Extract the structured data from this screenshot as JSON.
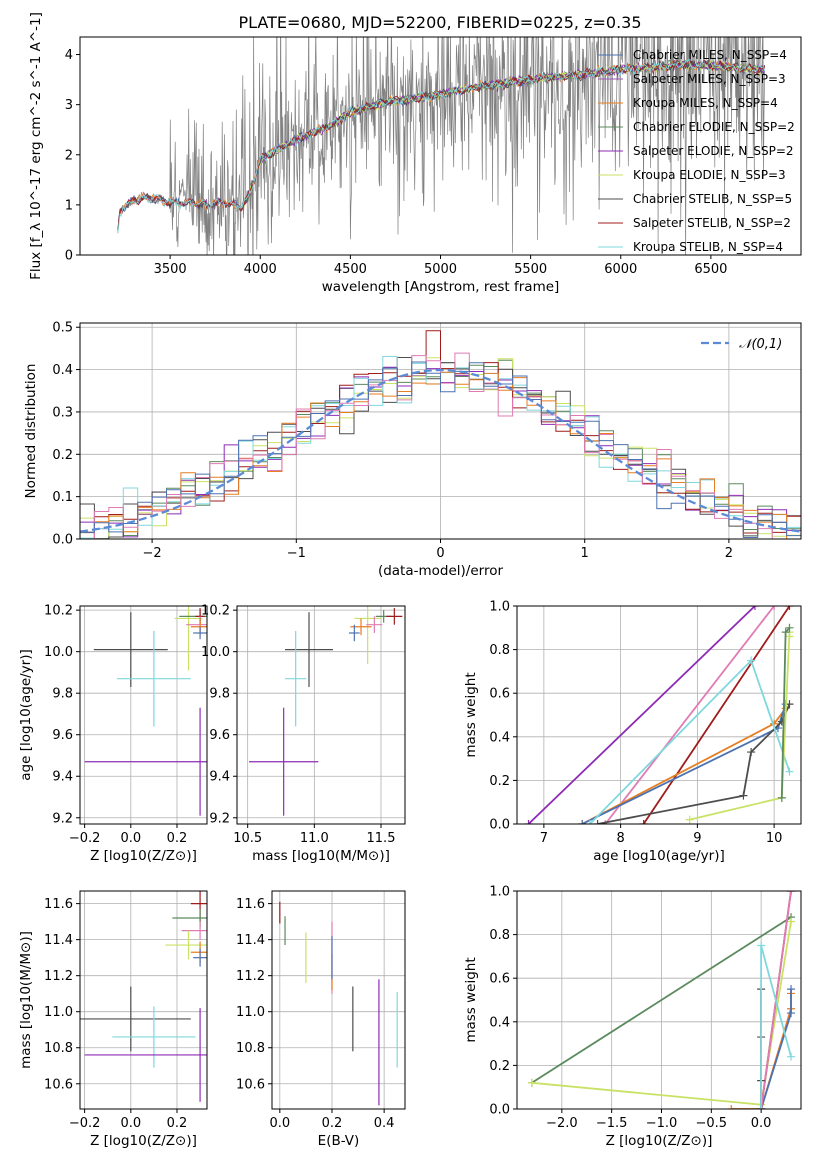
{
  "title": "PLATE=0680, MJD=52200, FIBERID=0225, z=0.35",
  "colors": {
    "Chabrier MILES": "#4C72B0",
    "Salpeter MILES": "#9B59B6",
    "Kroupa MILES": "#E67E22",
    "Chabrier ELODIE": "#5B8A5E",
    "Salpeter ELODIE": "#8E2BB5",
    "Kroupa ELODIE": "#C9E265",
    "Chabrier STELIB": "#4D4D4D",
    "Salpeter STELIB": "#A01C1C",
    "Kroupa STELIB": "#7FD8DD",
    "extra_pink": "#E07BB5",
    "data": "#808080",
    "normal": "#5B8BD6"
  },
  "chart_data": [
    {
      "id": "spectrum",
      "type": "line",
      "title": "PLATE=0680, MJD=52200, FIBERID=0225, z=0.35",
      "xlabel": "wavelength [Angstrom, rest frame]",
      "ylabel": "Flux [f_λ 10^-17 erg cm^-2 s^-1 A^-1]",
      "xlim": [
        3000,
        7000
      ],
      "ylim": [
        0,
        4.35
      ],
      "xticks": [
        3500,
        4000,
        4500,
        5000,
        5500,
        6000,
        6500
      ],
      "yticks": [
        0,
        1,
        2,
        3,
        4
      ],
      "legend": "top-right",
      "series": [
        {
          "name": "Chabrier MILES, N_SSP=4"
        },
        {
          "name": "Salpeter MILES, N_SSP=3"
        },
        {
          "name": "Kroupa MILES, N_SSP=4"
        },
        {
          "name": "Chabrier ELODIE, N_SSP=2"
        },
        {
          "name": "Salpeter ELODIE, N_SSP=2"
        },
        {
          "name": "Kroupa ELODIE, N_SSP=3"
        },
        {
          "name": "Chabrier STELIB, N_SSP=5"
        },
        {
          "name": "Salpeter STELIB, N_SSP=2"
        },
        {
          "name": "Kroupa STELIB, N_SSP=4"
        }
      ],
      "model_curve": {
        "x": [
          3200,
          3220,
          3300,
          3400,
          3500,
          3600,
          3700,
          3800,
          3900,
          3950,
          4000,
          4100,
          4200,
          4300,
          4400,
          4500,
          4600,
          4700,
          4800,
          4900,
          5000,
          5200,
          5400,
          5600,
          5800,
          6000,
          6200,
          6400,
          6600,
          6800
        ],
        "y": [
          0.0,
          0.9,
          1.1,
          1.15,
          1.05,
          1.05,
          1.0,
          1.05,
          0.95,
          1.3,
          1.9,
          2.1,
          2.3,
          2.45,
          2.6,
          2.85,
          2.95,
          3.05,
          3.1,
          3.15,
          3.2,
          3.35,
          3.45,
          3.55,
          3.6,
          3.7,
          3.75,
          3.8,
          3.75,
          3.7
        ]
      },
      "data_noise": [
        {
          "from": 3500,
          "to": 3800,
          "amp": 0.9
        },
        {
          "from": 3800,
          "to": 5000,
          "amp": 1.1
        },
        {
          "from": 5000,
          "to": 6000,
          "amp": 1.3
        },
        {
          "from": 6000,
          "to": 6800,
          "amp": 1.5
        }
      ]
    },
    {
      "id": "residuals",
      "type": "step-histogram",
      "xlabel": "(data-model)/error",
      "ylabel": "Normed distribution",
      "xlim": [
        -2.5,
        2.5
      ],
      "ylim": [
        0,
        0.51
      ],
      "xticks": [
        -2,
        -1,
        0,
        1,
        2
      ],
      "yticks": [
        0.0,
        0.1,
        0.2,
        0.3,
        0.4,
        0.5
      ],
      "legend": "top-right",
      "reference": {
        "name": "𝒩(0,1)",
        "mean": 0,
        "sigma": 1
      },
      "bin_width": 0.1
    },
    {
      "id": "age_vs_Z",
      "type": "errorbar",
      "xlabel": "Z [log10(Z/Z⊙)]",
      "ylabel": "age  [log10(age/yr)]",
      "xlim": [
        -0.22,
        0.33
      ],
      "ylim": [
        9.17,
        10.22
      ],
      "xticks": [
        -0.2,
        0.0,
        0.2
      ],
      "yticks": [
        9.2,
        9.4,
        9.6,
        9.8,
        10.0,
        10.2
      ],
      "points": [
        {
          "color": "Chabrier STELIB",
          "x": 0.0,
          "y": 10.01,
          "xerr": 0.16,
          "yerr": 0.18
        },
        {
          "color": "Kroupa STELIB",
          "x": 0.1,
          "y": 9.87,
          "xerr": 0.16,
          "yerr": 0.23
        },
        {
          "color": "Salpeter ELODIE",
          "x": 0.3,
          "y": 9.47,
          "xerr": 0.5,
          "yerr": 0.26
        },
        {
          "color": "Kroupa ELODIE",
          "x": 0.25,
          "y": 10.16,
          "xerr": 0.06,
          "yerr": 0.25
        },
        {
          "color": "Chabrier ELODIE",
          "x": 0.3,
          "y": 10.17,
          "xerr": 0.09,
          "yerr": 0.03
        },
        {
          "color": "Salpeter STELIB",
          "x": 0.3,
          "y": 10.17,
          "xerr": 0.02,
          "yerr": 0.04
        },
        {
          "color": "extra_pink",
          "x": 0.3,
          "y": 10.13,
          "xerr": 0.06,
          "yerr": 0.04
        },
        {
          "color": "Kroupa MILES",
          "x": 0.3,
          "y": 10.12,
          "xerr": 0.04,
          "yerr": 0.04
        },
        {
          "color": "Chabrier MILES",
          "x": 0.3,
          "y": 10.09,
          "xerr": 0.03,
          "yerr": 0.03
        }
      ]
    },
    {
      "id": "age_vs_mass",
      "type": "errorbar",
      "xlabel": "mass [log10(M/M⊙)]",
      "ylabel": "",
      "xlim": [
        10.42,
        11.68
      ],
      "ylim": [
        9.17,
        10.22
      ],
      "xticks": [
        10.5,
        11.0,
        11.5
      ],
      "yticks": [
        9.2,
        9.4,
        9.6,
        9.8,
        10.0,
        10.2
      ],
      "points": [
        {
          "color": "Chabrier STELIB",
          "x": 10.96,
          "y": 10.01,
          "xerr": 0.18,
          "yerr": 0.18
        },
        {
          "color": "Kroupa STELIB",
          "x": 10.86,
          "y": 9.87,
          "xerr": 0.08,
          "yerr": 0.23
        },
        {
          "color": "Salpeter ELODIE",
          "x": 10.77,
          "y": 9.47,
          "xerr": 0.26,
          "yerr": 0.26
        },
        {
          "color": "Kroupa ELODIE",
          "x": 11.4,
          "y": 10.16,
          "xerr": 0.1,
          "yerr": 0.22
        },
        {
          "color": "Chabrier ELODIE",
          "x": 11.52,
          "y": 10.17,
          "xerr": 0.06,
          "yerr": 0.03
        },
        {
          "color": "Salpeter STELIB",
          "x": 11.6,
          "y": 10.17,
          "xerr": 0.06,
          "yerr": 0.04
        },
        {
          "color": "extra_pink",
          "x": 11.45,
          "y": 10.13,
          "xerr": 0.06,
          "yerr": 0.04
        },
        {
          "color": "Kroupa MILES",
          "x": 11.35,
          "y": 10.12,
          "xerr": 0.08,
          "yerr": 0.04
        },
        {
          "color": "Chabrier MILES",
          "x": 11.3,
          "y": 10.09,
          "xerr": 0.04,
          "yerr": 0.04
        }
      ]
    },
    {
      "id": "weight_vs_age",
      "type": "line",
      "xlabel": "age  [log10(age/yr)]",
      "ylabel": "mass weight",
      "xlim": [
        6.65,
        10.35
      ],
      "ylim": [
        0,
        1.0
      ],
      "xticks": [
        7,
        8,
        9,
        10
      ],
      "yticks": [
        0.0,
        0.2,
        0.4,
        0.6,
        0.8,
        1.0
      ],
      "series": [
        {
          "color": "Salpeter ELODIE",
          "x": [
            6.8,
            9.75
          ],
          "y": [
            0.0,
            1.0
          ]
        },
        {
          "color": "extra_pink",
          "x": [
            7.8,
            10.0
          ],
          "y": [
            0.0,
            1.0
          ]
        },
        {
          "color": "Salpeter STELIB",
          "x": [
            8.3,
            10.2
          ],
          "y": [
            0.0,
            1.0
          ]
        },
        {
          "color": "Kroupa MILES",
          "x": [
            7.5,
            10.0,
            10.15
          ],
          "y": [
            0.0,
            0.46,
            0.53
          ]
        },
        {
          "color": "Chabrier MILES",
          "x": [
            7.5,
            10.05,
            10.15
          ],
          "y": [
            0.0,
            0.44,
            0.55
          ]
        },
        {
          "color": "Chabrier STELIB",
          "x": [
            7.7,
            9.6,
            9.7,
            10.1,
            10.2
          ],
          "y": [
            0.0,
            0.13,
            0.33,
            0.47,
            0.55
          ]
        },
        {
          "color": "Kroupa STELIB",
          "x": [
            7.6,
            9.7,
            10.2
          ],
          "y": [
            0.0,
            0.75,
            0.24
          ]
        },
        {
          "color": "Kroupa ELODIE",
          "x": [
            8.9,
            10.1,
            10.2,
            10.2
          ],
          "y": [
            0.02,
            0.12,
            0.88,
            0.86
          ]
        },
        {
          "color": "Chabrier ELODIE",
          "x": [
            10.1,
            10.15,
            10.2
          ],
          "y": [
            0.12,
            0.88,
            0.9
          ]
        }
      ]
    },
    {
      "id": "mass_vs_Z",
      "type": "errorbar",
      "xlabel": "Z [log10(Z/Z⊙)]",
      "ylabel": "mass [log10(M/M⊙)]",
      "xlim": [
        -0.22,
        0.33
      ],
      "ylim": [
        10.46,
        11.67
      ],
      "xticks": [
        -0.2,
        0.0,
        0.2
      ],
      "yticks": [
        10.6,
        10.8,
        11.0,
        11.2,
        11.4,
        11.6
      ],
      "points": [
        {
          "color": "Chabrier STELIB",
          "x": 0.0,
          "y": 10.96,
          "xerr": 0.26,
          "yerr": 0.18
        },
        {
          "color": "Kroupa STELIB",
          "x": 0.1,
          "y": 10.86,
          "xerr": 0.18,
          "yerr": 0.17
        },
        {
          "color": "Salpeter ELODIE",
          "x": 0.3,
          "y": 10.76,
          "xerr": 0.5,
          "yerr": 0.26
        },
        {
          "color": "Salpeter STELIB",
          "x": 0.3,
          "y": 11.6,
          "xerr": 0.04,
          "yerr": 0.1
        },
        {
          "color": "Chabrier ELODIE",
          "x": 0.3,
          "y": 11.52,
          "xerr": 0.12,
          "yerr": 0.05
        },
        {
          "color": "extra_pink",
          "x": 0.3,
          "y": 11.45,
          "xerr": 0.08,
          "yerr": 0.05
        },
        {
          "color": "Kroupa ELODIE",
          "x": 0.25,
          "y": 11.37,
          "xerr": 0.1,
          "yerr": 0.08
        },
        {
          "color": "Kroupa MILES",
          "x": 0.3,
          "y": 11.33,
          "xerr": 0.04,
          "yerr": 0.06
        },
        {
          "color": "Chabrier MILES",
          "x": 0.3,
          "y": 11.3,
          "xerr": 0.03,
          "yerr": 0.05
        }
      ]
    },
    {
      "id": "mass_vs_EBV",
      "type": "errorbar",
      "xlabel": "E(B-V)",
      "ylabel": "",
      "xlim": [
        -0.03,
        0.48
      ],
      "ylim": [
        10.46,
        11.67
      ],
      "xticks": [
        0.0,
        0.2,
        0.4
      ],
      "yticks": [
        10.6,
        10.8,
        11.0,
        11.2,
        11.4,
        11.6
      ],
      "points": [
        {
          "color": "Salpeter STELIB",
          "x": 0.0,
          "y": 11.55,
          "xerr": 0,
          "yerr": 0.06
        },
        {
          "color": "Chabrier ELODIE",
          "x": 0.02,
          "y": 11.45,
          "xerr": 0,
          "yerr": 0.08
        },
        {
          "color": "Kroupa ELODIE",
          "x": 0.1,
          "y": 11.3,
          "xerr": 0,
          "yerr": 0.14
        },
        {
          "color": "extra_pink",
          "x": 0.2,
          "y": 11.3,
          "xerr": 0,
          "yerr": 0.2
        },
        {
          "color": "Kroupa MILES",
          "x": 0.2,
          "y": 11.22,
          "xerr": 0,
          "yerr": 0.1
        },
        {
          "color": "Chabrier MILES",
          "x": 0.2,
          "y": 11.3,
          "xerr": 0,
          "yerr": 0.12
        },
        {
          "color": "Chabrier STELIB",
          "x": 0.28,
          "y": 10.96,
          "xerr": 0,
          "yerr": 0.18
        },
        {
          "color": "Salpeter ELODIE",
          "x": 0.38,
          "y": 10.83,
          "xerr": 0,
          "yerr": 0.35
        },
        {
          "color": "Kroupa STELIB",
          "x": 0.45,
          "y": 10.9,
          "xerr": 0,
          "yerr": 0.21
        }
      ]
    },
    {
      "id": "weight_vs_Z",
      "type": "line",
      "xlabel": "Z [log10(Z/Z⊙)]",
      "ylabel": "mass weight",
      "xlim": [
        -2.45,
        0.4
      ],
      "ylim": [
        0,
        1.0
      ],
      "xticks": [
        -2.0,
        -1.5,
        -1.0,
        -0.5,
        0.0
      ],
      "yticks": [
        0.0,
        0.2,
        0.4,
        0.6,
        0.8,
        1.0
      ],
      "series": [
        {
          "color": "Chabrier ELODIE",
          "x": [
            -2.3,
            0.3
          ],
          "y": [
            0.12,
            0.88
          ]
        },
        {
          "color": "Kroupa ELODIE",
          "x": [
            -2.3,
            0.0,
            0.3
          ],
          "y": [
            0.12,
            0.02,
            0.86
          ]
        },
        {
          "color": "Kroupa MILES",
          "x": [
            -0.3,
            0.0,
            0.3,
            0.3
          ],
          "y": [
            0.0,
            0.0,
            0.46,
            0.53
          ]
        },
        {
          "color": "Chabrier MILES",
          "x": [
            0.0,
            0.3,
            0.3
          ],
          "y": [
            0.0,
            0.44,
            0.55
          ]
        },
        {
          "color": "Salpeter STELIB",
          "x": [
            0.0,
            0.3
          ],
          "y": [
            0.0,
            1.0
          ]
        },
        {
          "color": "extra_pink",
          "x": [
            0.0,
            0.3
          ],
          "y": [
            0.0,
            1.0
          ]
        },
        {
          "color": "Chabrier STELIB",
          "x": [
            0.0,
            0.0,
            0.0,
            0.0
          ],
          "y": [
            0.0,
            0.13,
            0.33,
            0.55
          ]
        },
        {
          "color": "Kroupa STELIB",
          "x": [
            0.0,
            0.0,
            0.3
          ],
          "y": [
            0.0,
            0.75,
            0.24
          ]
        }
      ]
    }
  ]
}
